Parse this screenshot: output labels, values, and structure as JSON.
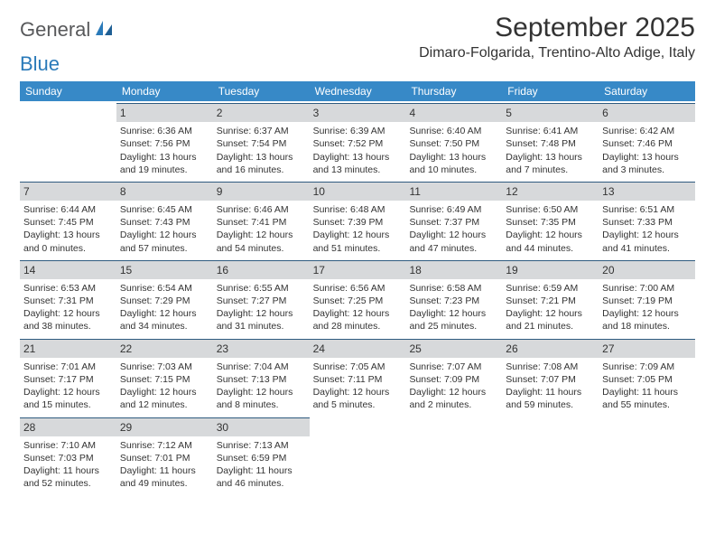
{
  "logo": {
    "text_gray": "General",
    "text_blue": "Blue"
  },
  "title": "September 2025",
  "location": "Dimaro-Folgarida, Trentino-Alto Adige, Italy",
  "colors": {
    "header_bg": "#3789c7",
    "header_text": "#ffffff",
    "daynum_bg": "#d7d9db",
    "cell_border_top": "#2f5b7f",
    "text": "#333333",
    "logo_gray": "#58595b",
    "logo_blue": "#2a7ab9",
    "page_bg": "#ffffff"
  },
  "day_headers": [
    "Sunday",
    "Monday",
    "Tuesday",
    "Wednesday",
    "Thursday",
    "Friday",
    "Saturday"
  ],
  "weeks": [
    [
      {
        "day": "",
        "sunrise": "",
        "sunset": "",
        "daylight": ""
      },
      {
        "day": "1",
        "sunrise": "Sunrise: 6:36 AM",
        "sunset": "Sunset: 7:56 PM",
        "daylight": "Daylight: 13 hours and 19 minutes."
      },
      {
        "day": "2",
        "sunrise": "Sunrise: 6:37 AM",
        "sunset": "Sunset: 7:54 PM",
        "daylight": "Daylight: 13 hours and 16 minutes."
      },
      {
        "day": "3",
        "sunrise": "Sunrise: 6:39 AM",
        "sunset": "Sunset: 7:52 PM",
        "daylight": "Daylight: 13 hours and 13 minutes."
      },
      {
        "day": "4",
        "sunrise": "Sunrise: 6:40 AM",
        "sunset": "Sunset: 7:50 PM",
        "daylight": "Daylight: 13 hours and 10 minutes."
      },
      {
        "day": "5",
        "sunrise": "Sunrise: 6:41 AM",
        "sunset": "Sunset: 7:48 PM",
        "daylight": "Daylight: 13 hours and 7 minutes."
      },
      {
        "day": "6",
        "sunrise": "Sunrise: 6:42 AM",
        "sunset": "Sunset: 7:46 PM",
        "daylight": "Daylight: 13 hours and 3 minutes."
      }
    ],
    [
      {
        "day": "7",
        "sunrise": "Sunrise: 6:44 AM",
        "sunset": "Sunset: 7:45 PM",
        "daylight": "Daylight: 13 hours and 0 minutes."
      },
      {
        "day": "8",
        "sunrise": "Sunrise: 6:45 AM",
        "sunset": "Sunset: 7:43 PM",
        "daylight": "Daylight: 12 hours and 57 minutes."
      },
      {
        "day": "9",
        "sunrise": "Sunrise: 6:46 AM",
        "sunset": "Sunset: 7:41 PM",
        "daylight": "Daylight: 12 hours and 54 minutes."
      },
      {
        "day": "10",
        "sunrise": "Sunrise: 6:48 AM",
        "sunset": "Sunset: 7:39 PM",
        "daylight": "Daylight: 12 hours and 51 minutes."
      },
      {
        "day": "11",
        "sunrise": "Sunrise: 6:49 AM",
        "sunset": "Sunset: 7:37 PM",
        "daylight": "Daylight: 12 hours and 47 minutes."
      },
      {
        "day": "12",
        "sunrise": "Sunrise: 6:50 AM",
        "sunset": "Sunset: 7:35 PM",
        "daylight": "Daylight: 12 hours and 44 minutes."
      },
      {
        "day": "13",
        "sunrise": "Sunrise: 6:51 AM",
        "sunset": "Sunset: 7:33 PM",
        "daylight": "Daylight: 12 hours and 41 minutes."
      }
    ],
    [
      {
        "day": "14",
        "sunrise": "Sunrise: 6:53 AM",
        "sunset": "Sunset: 7:31 PM",
        "daylight": "Daylight: 12 hours and 38 minutes."
      },
      {
        "day": "15",
        "sunrise": "Sunrise: 6:54 AM",
        "sunset": "Sunset: 7:29 PM",
        "daylight": "Daylight: 12 hours and 34 minutes."
      },
      {
        "day": "16",
        "sunrise": "Sunrise: 6:55 AM",
        "sunset": "Sunset: 7:27 PM",
        "daylight": "Daylight: 12 hours and 31 minutes."
      },
      {
        "day": "17",
        "sunrise": "Sunrise: 6:56 AM",
        "sunset": "Sunset: 7:25 PM",
        "daylight": "Daylight: 12 hours and 28 minutes."
      },
      {
        "day": "18",
        "sunrise": "Sunrise: 6:58 AM",
        "sunset": "Sunset: 7:23 PM",
        "daylight": "Daylight: 12 hours and 25 minutes."
      },
      {
        "day": "19",
        "sunrise": "Sunrise: 6:59 AM",
        "sunset": "Sunset: 7:21 PM",
        "daylight": "Daylight: 12 hours and 21 minutes."
      },
      {
        "day": "20",
        "sunrise": "Sunrise: 7:00 AM",
        "sunset": "Sunset: 7:19 PM",
        "daylight": "Daylight: 12 hours and 18 minutes."
      }
    ],
    [
      {
        "day": "21",
        "sunrise": "Sunrise: 7:01 AM",
        "sunset": "Sunset: 7:17 PM",
        "daylight": "Daylight: 12 hours and 15 minutes."
      },
      {
        "day": "22",
        "sunrise": "Sunrise: 7:03 AM",
        "sunset": "Sunset: 7:15 PM",
        "daylight": "Daylight: 12 hours and 12 minutes."
      },
      {
        "day": "23",
        "sunrise": "Sunrise: 7:04 AM",
        "sunset": "Sunset: 7:13 PM",
        "daylight": "Daylight: 12 hours and 8 minutes."
      },
      {
        "day": "24",
        "sunrise": "Sunrise: 7:05 AM",
        "sunset": "Sunset: 7:11 PM",
        "daylight": "Daylight: 12 hours and 5 minutes."
      },
      {
        "day": "25",
        "sunrise": "Sunrise: 7:07 AM",
        "sunset": "Sunset: 7:09 PM",
        "daylight": "Daylight: 12 hours and 2 minutes."
      },
      {
        "day": "26",
        "sunrise": "Sunrise: 7:08 AM",
        "sunset": "Sunset: 7:07 PM",
        "daylight": "Daylight: 11 hours and 59 minutes."
      },
      {
        "day": "27",
        "sunrise": "Sunrise: 7:09 AM",
        "sunset": "Sunset: 7:05 PM",
        "daylight": "Daylight: 11 hours and 55 minutes."
      }
    ],
    [
      {
        "day": "28",
        "sunrise": "Sunrise: 7:10 AM",
        "sunset": "Sunset: 7:03 PM",
        "daylight": "Daylight: 11 hours and 52 minutes."
      },
      {
        "day": "29",
        "sunrise": "Sunrise: 7:12 AM",
        "sunset": "Sunset: 7:01 PM",
        "daylight": "Daylight: 11 hours and 49 minutes."
      },
      {
        "day": "30",
        "sunrise": "Sunrise: 7:13 AM",
        "sunset": "Sunset: 6:59 PM",
        "daylight": "Daylight: 11 hours and 46 minutes."
      },
      {
        "day": "",
        "sunrise": "",
        "sunset": "",
        "daylight": ""
      },
      {
        "day": "",
        "sunrise": "",
        "sunset": "",
        "daylight": ""
      },
      {
        "day": "",
        "sunrise": "",
        "sunset": "",
        "daylight": ""
      },
      {
        "day": "",
        "sunrise": "",
        "sunset": "",
        "daylight": ""
      }
    ]
  ]
}
